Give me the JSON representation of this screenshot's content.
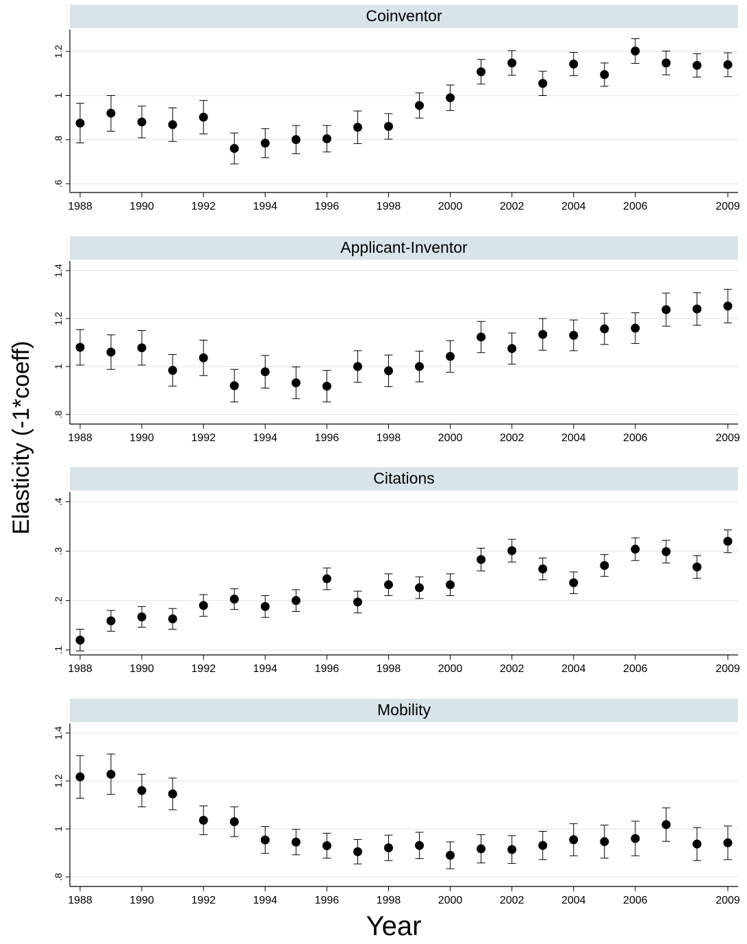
{
  "figure": {
    "ylabel": "Elasticity (-1*coeff)",
    "xlabel": "Year"
  },
  "chart_data": [
    {
      "type": "scatter",
      "title": "Coinventor",
      "x_ticks": [
        "1988",
        "1990",
        "1992",
        "1994",
        "1996",
        "1998",
        "2000",
        "2002",
        "2004",
        "2006",
        "2009"
      ],
      "y_ticks": [
        ".6",
        ".8",
        "1",
        "1.2"
      ],
      "ylim": [
        0.56,
        1.3
      ],
      "grid": true,
      "points": [
        {
          "year": 1988,
          "est": 0.875,
          "lo": 0.785,
          "hi": 0.965
        },
        {
          "year": 1989,
          "est": 0.92,
          "lo": 0.838,
          "hi": 1.0
        },
        {
          "year": 1990,
          "est": 0.88,
          "lo": 0.808,
          "hi": 0.952
        },
        {
          "year": 1991,
          "est": 0.868,
          "lo": 0.792,
          "hi": 0.944
        },
        {
          "year": 1992,
          "est": 0.902,
          "lo": 0.826,
          "hi": 0.978
        },
        {
          "year": 1993,
          "est": 0.76,
          "lo": 0.69,
          "hi": 0.83
        },
        {
          "year": 1994,
          "est": 0.784,
          "lo": 0.718,
          "hi": 0.85
        },
        {
          "year": 1995,
          "est": 0.8,
          "lo": 0.736,
          "hi": 0.864
        },
        {
          "year": 1996,
          "est": 0.804,
          "lo": 0.744,
          "hi": 0.864
        },
        {
          "year": 1997,
          "est": 0.856,
          "lo": 0.782,
          "hi": 0.93
        },
        {
          "year": 1998,
          "est": 0.86,
          "lo": 0.802,
          "hi": 0.918
        },
        {
          "year": 1999,
          "est": 0.955,
          "lo": 0.898,
          "hi": 1.012
        },
        {
          "year": 2000,
          "est": 0.99,
          "lo": 0.932,
          "hi": 1.048
        },
        {
          "year": 2001,
          "est": 1.108,
          "lo": 1.052,
          "hi": 1.164
        },
        {
          "year": 2002,
          "est": 1.148,
          "lo": 1.092,
          "hi": 1.204
        },
        {
          "year": 2003,
          "est": 1.055,
          "lo": 1.0,
          "hi": 1.11
        },
        {
          "year": 2004,
          "est": 1.143,
          "lo": 1.09,
          "hi": 1.196
        },
        {
          "year": 2005,
          "est": 1.095,
          "lo": 1.042,
          "hi": 1.148
        },
        {
          "year": 2006,
          "est": 1.202,
          "lo": 1.146,
          "hi": 1.258
        },
        {
          "year": 2007,
          "est": 1.148,
          "lo": 1.094,
          "hi": 1.202
        },
        {
          "year": 2008,
          "est": 1.137,
          "lo": 1.084,
          "hi": 1.19
        },
        {
          "year": 2009,
          "est": 1.14,
          "lo": 1.086,
          "hi": 1.194
        }
      ]
    },
    {
      "type": "scatter",
      "title": "Applicant-Inventor",
      "x_ticks": [
        "1988",
        "1990",
        "1992",
        "1994",
        "1996",
        "1998",
        "2000",
        "2002",
        "2004",
        "2006",
        "2009"
      ],
      "y_ticks": [
        ".8",
        "1",
        "1.2",
        "1.4"
      ],
      "ylim": [
        0.76,
        1.44
      ],
      "grid": true,
      "points": [
        {
          "year": 1988,
          "est": 1.08,
          "lo": 1.006,
          "hi": 1.154
        },
        {
          "year": 1989,
          "est": 1.06,
          "lo": 0.988,
          "hi": 1.132
        },
        {
          "year": 1990,
          "est": 1.078,
          "lo": 1.006,
          "hi": 1.15
        },
        {
          "year": 1991,
          "est": 0.984,
          "lo": 0.918,
          "hi": 1.05
        },
        {
          "year": 1992,
          "est": 1.036,
          "lo": 0.962,
          "hi": 1.11
        },
        {
          "year": 1993,
          "est": 0.92,
          "lo": 0.852,
          "hi": 0.988
        },
        {
          "year": 1994,
          "est": 0.978,
          "lo": 0.91,
          "hi": 1.046
        },
        {
          "year": 1995,
          "est": 0.932,
          "lo": 0.866,
          "hi": 0.998
        },
        {
          "year": 1996,
          "est": 0.918,
          "lo": 0.852,
          "hi": 0.984
        },
        {
          "year": 1997,
          "est": 1.0,
          "lo": 0.934,
          "hi": 1.066
        },
        {
          "year": 1998,
          "est": 0.982,
          "lo": 0.916,
          "hi": 1.048
        },
        {
          "year": 1999,
          "est": 1.0,
          "lo": 0.936,
          "hi": 1.064
        },
        {
          "year": 2000,
          "est": 1.042,
          "lo": 0.976,
          "hi": 1.108
        },
        {
          "year": 2001,
          "est": 1.123,
          "lo": 1.058,
          "hi": 1.188
        },
        {
          "year": 2002,
          "est": 1.075,
          "lo": 1.01,
          "hi": 1.14
        },
        {
          "year": 2003,
          "est": 1.134,
          "lo": 1.068,
          "hi": 1.2
        },
        {
          "year": 2004,
          "est": 1.13,
          "lo": 1.066,
          "hi": 1.194
        },
        {
          "year": 2005,
          "est": 1.157,
          "lo": 1.092,
          "hi": 1.222
        },
        {
          "year": 2006,
          "est": 1.16,
          "lo": 1.096,
          "hi": 1.224
        },
        {
          "year": 2007,
          "est": 1.237,
          "lo": 1.168,
          "hi": 1.306
        },
        {
          "year": 2008,
          "est": 1.24,
          "lo": 1.172,
          "hi": 1.308
        },
        {
          "year": 2009,
          "est": 1.252,
          "lo": 1.182,
          "hi": 1.322
        }
      ]
    },
    {
      "type": "scatter",
      "title": "Citations",
      "x_ticks": [
        "1988",
        "1990",
        "1992",
        "1994",
        "1996",
        "1998",
        "2000",
        "2002",
        "2004",
        "2006",
        "2009"
      ],
      "y_ticks": [
        ".1",
        ".2",
        ".3",
        ".4"
      ],
      "ylim": [
        0.09,
        0.42
      ],
      "grid": true,
      "points": [
        {
          "year": 1988,
          "est": 0.12,
          "lo": 0.098,
          "hi": 0.142
        },
        {
          "year": 1989,
          "est": 0.159,
          "lo": 0.138,
          "hi": 0.18
        },
        {
          "year": 1990,
          "est": 0.167,
          "lo": 0.146,
          "hi": 0.188
        },
        {
          "year": 1991,
          "est": 0.163,
          "lo": 0.142,
          "hi": 0.184
        },
        {
          "year": 1992,
          "est": 0.19,
          "lo": 0.168,
          "hi": 0.212
        },
        {
          "year": 1993,
          "est": 0.203,
          "lo": 0.182,
          "hi": 0.224
        },
        {
          "year": 1994,
          "est": 0.188,
          "lo": 0.166,
          "hi": 0.21
        },
        {
          "year": 1995,
          "est": 0.2,
          "lo": 0.178,
          "hi": 0.222
        },
        {
          "year": 1996,
          "est": 0.244,
          "lo": 0.222,
          "hi": 0.266
        },
        {
          "year": 1997,
          "est": 0.197,
          "lo": 0.175,
          "hi": 0.219
        },
        {
          "year": 1998,
          "est": 0.232,
          "lo": 0.21,
          "hi": 0.254
        },
        {
          "year": 1999,
          "est": 0.226,
          "lo": 0.204,
          "hi": 0.248
        },
        {
          "year": 2000,
          "est": 0.232,
          "lo": 0.21,
          "hi": 0.254
        },
        {
          "year": 2001,
          "est": 0.283,
          "lo": 0.26,
          "hi": 0.306
        },
        {
          "year": 2002,
          "est": 0.301,
          "lo": 0.278,
          "hi": 0.324
        },
        {
          "year": 2003,
          "est": 0.264,
          "lo": 0.242,
          "hi": 0.286
        },
        {
          "year": 2004,
          "est": 0.236,
          "lo": 0.214,
          "hi": 0.258
        },
        {
          "year": 2005,
          "est": 0.271,
          "lo": 0.249,
          "hi": 0.293
        },
        {
          "year": 2006,
          "est": 0.304,
          "lo": 0.281,
          "hi": 0.327
        },
        {
          "year": 2007,
          "est": 0.299,
          "lo": 0.276,
          "hi": 0.322
        },
        {
          "year": 2008,
          "est": 0.268,
          "lo": 0.245,
          "hi": 0.291
        },
        {
          "year": 2009,
          "est": 0.32,
          "lo": 0.297,
          "hi": 0.343
        }
      ]
    },
    {
      "type": "scatter",
      "title": "Mobility",
      "x_ticks": [
        "1988",
        "1990",
        "1992",
        "1994",
        "1996",
        "1998",
        "2000",
        "2002",
        "2004",
        "2006",
        "2009"
      ],
      "y_ticks": [
        ".8",
        "1",
        "1.2",
        "1.4"
      ],
      "ylim": [
        0.76,
        1.44
      ],
      "grid": true,
      "points": [
        {
          "year": 1988,
          "est": 1.217,
          "lo": 1.128,
          "hi": 1.306
        },
        {
          "year": 1989,
          "est": 1.228,
          "lo": 1.144,
          "hi": 1.312
        },
        {
          "year": 1990,
          "est": 1.16,
          "lo": 1.092,
          "hi": 1.228
        },
        {
          "year": 1991,
          "est": 1.146,
          "lo": 1.08,
          "hi": 1.212
        },
        {
          "year": 1992,
          "est": 1.036,
          "lo": 0.976,
          "hi": 1.096
        },
        {
          "year": 1993,
          "est": 1.03,
          "lo": 0.968,
          "hi": 1.092
        },
        {
          "year": 1994,
          "est": 0.954,
          "lo": 0.898,
          "hi": 1.01
        },
        {
          "year": 1995,
          "est": 0.945,
          "lo": 0.892,
          "hi": 0.998
        },
        {
          "year": 1996,
          "est": 0.93,
          "lo": 0.878,
          "hi": 0.982
        },
        {
          "year": 1997,
          "est": 0.905,
          "lo": 0.854,
          "hi": 0.956
        },
        {
          "year": 1998,
          "est": 0.921,
          "lo": 0.868,
          "hi": 0.974
        },
        {
          "year": 1999,
          "est": 0.931,
          "lo": 0.876,
          "hi": 0.986
        },
        {
          "year": 2000,
          "est": 0.89,
          "lo": 0.834,
          "hi": 0.946
        },
        {
          "year": 2001,
          "est": 0.917,
          "lo": 0.858,
          "hi": 0.976
        },
        {
          "year": 2002,
          "est": 0.914,
          "lo": 0.856,
          "hi": 0.972
        },
        {
          "year": 2003,
          "est": 0.931,
          "lo": 0.872,
          "hi": 0.99
        },
        {
          "year": 2004,
          "est": 0.955,
          "lo": 0.888,
          "hi": 1.022
        },
        {
          "year": 2005,
          "est": 0.947,
          "lo": 0.878,
          "hi": 1.016
        },
        {
          "year": 2006,
          "est": 0.96,
          "lo": 0.888,
          "hi": 1.032
        },
        {
          "year": 2007,
          "est": 1.018,
          "lo": 0.948,
          "hi": 1.088
        },
        {
          "year": 2008,
          "est": 0.937,
          "lo": 0.868,
          "hi": 1.006
        },
        {
          "year": 2009,
          "est": 0.942,
          "lo": 0.872,
          "hi": 1.012
        }
      ]
    }
  ]
}
